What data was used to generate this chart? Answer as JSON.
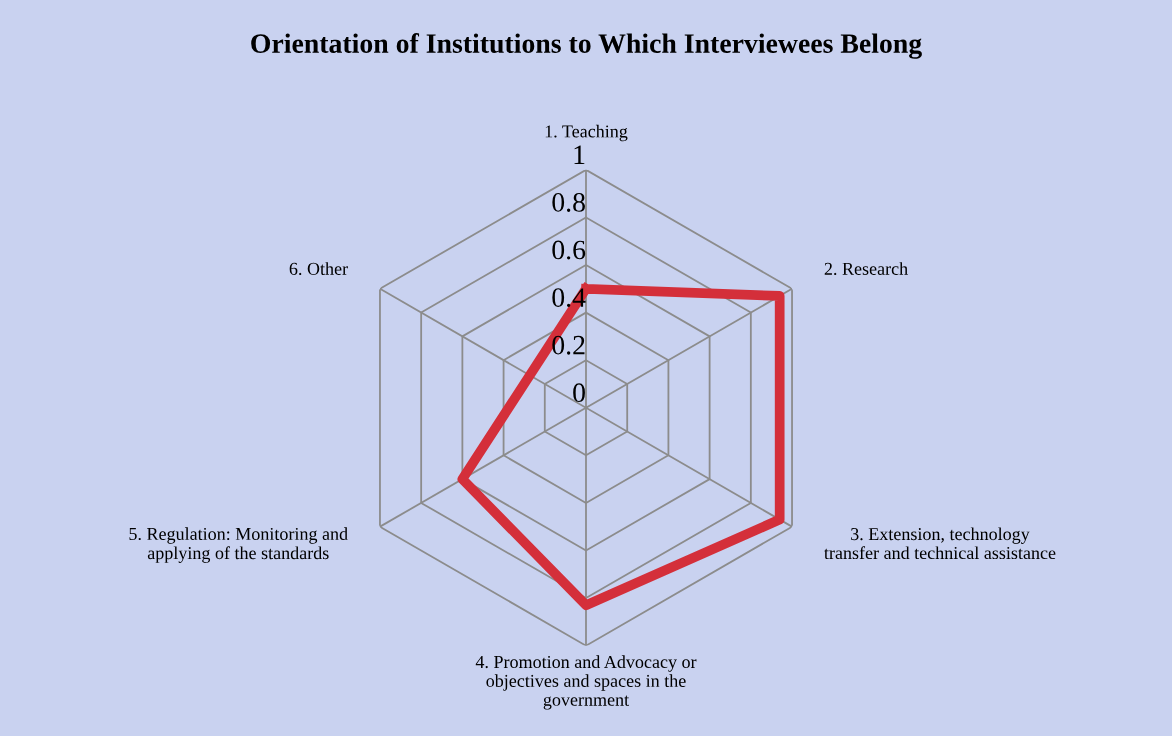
{
  "chart_data": {
    "type": "radar",
    "title": "Orientation of Institutions to Which Interviewees Belong",
    "categories": [
      "1. Teaching",
      "2. Research",
      "3. Extension, technology\ntransfer and technical assistance",
      "4. Promotion and Advocacy or\nobjectives and spaces in the\ngovernment",
      "5. Regulation: Monitoring and\napplying of the standards",
      "6. Other"
    ],
    "series": [
      {
        "color": "#d42f3a",
        "values": [
          0.5,
          0.94,
          0.94,
          0.83,
          0.6,
          null
        ]
      }
    ],
    "ylim": [
      0,
      1
    ],
    "yticks": [
      0,
      0.2,
      0.4,
      0.6,
      0.8,
      1
    ],
    "grid": true,
    "marker": "none",
    "line_style": "solid"
  }
}
